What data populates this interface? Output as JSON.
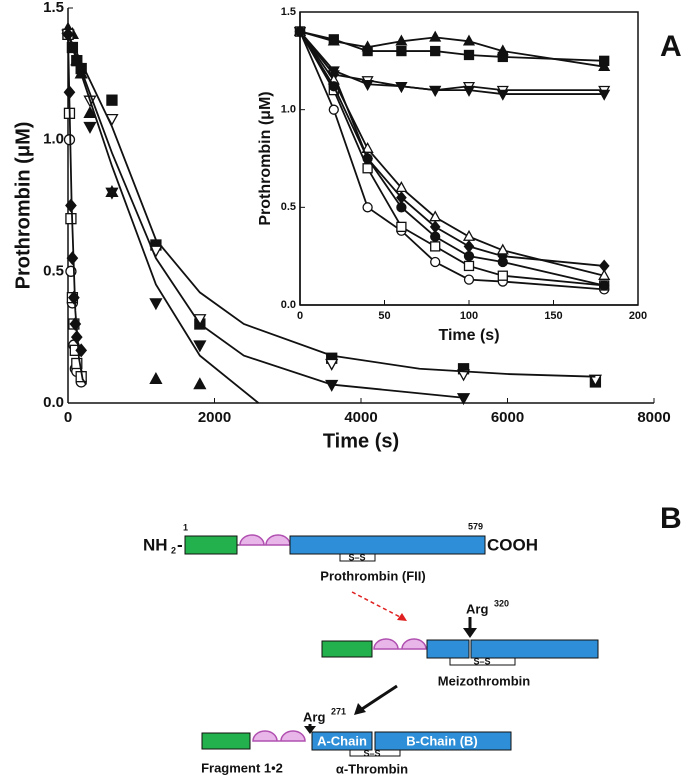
{
  "panel_a": "A",
  "panel_b": "B",
  "chart_data": [
    {
      "type": "scatter",
      "xlabel": "Time (s)",
      "ylabel": "Prothrombin (μM)",
      "xlim": [
        0,
        8000
      ],
      "xticks": [
        0,
        2000,
        4000,
        6000,
        8000
      ],
      "ylim": [
        0,
        1.5
      ],
      "yticks": [
        {
          "value": 0,
          "label": "0.0"
        },
        0.5,
        {
          "value": 1,
          "label": "1.0"
        },
        1.5
      ],
      "series": [
        {
          "marker": "square",
          "filled": true,
          "color": "#111",
          "x": [
            0,
            60,
            120,
            180,
            600,
            1200,
            1800,
            3600,
            5400,
            7200
          ],
          "values": [
            1.4,
            1.35,
            1.3,
            1.27,
            1.15,
            0.6,
            0.3,
            0.17,
            0.13,
            0.08
          ]
        },
        {
          "marker": "triangle-down",
          "filled": false,
          "color": "#111",
          "x": [
            0,
            300,
            600,
            1200,
            1800,
            3600,
            5400,
            7200
          ],
          "values": [
            1.4,
            1.15,
            1.08,
            0.58,
            0.32,
            0.15,
            0.11,
            0.09
          ]
        },
        {
          "marker": "triangle-down",
          "filled": true,
          "color": "#111",
          "x": [
            0,
            300,
            600,
            1200,
            1800,
            3600,
            5400
          ],
          "values": [
            1.4,
            1.05,
            0.8,
            0.38,
            0.22,
            0.07,
            0.02
          ]
        },
        {
          "marker": "triangle",
          "filled": true,
          "color": "#111",
          "x": [
            0,
            60,
            120,
            180,
            300,
            600,
            1200,
            1800
          ],
          "values": [
            1.42,
            1.4,
            1.3,
            1.25,
            1.1,
            0.8,
            0.09,
            0.07
          ]
        },
        {
          "marker": "circle",
          "filled": false,
          "color": "#111",
          "x": [
            0,
            20,
            40,
            60,
            80,
            100,
            120,
            180
          ],
          "values": [
            1.4,
            1.0,
            0.5,
            0.38,
            0.22,
            0.13,
            0.12,
            0.08
          ]
        },
        {
          "marker": "square",
          "filled": false,
          "color": "#111",
          "x": [
            0,
            20,
            40,
            60,
            80,
            100,
            120,
            180
          ],
          "values": [
            1.4,
            1.1,
            0.7,
            0.4,
            0.3,
            0.2,
            0.15,
            0.1
          ]
        },
        {
          "marker": "diamond",
          "filled": true,
          "color": "#111",
          "x": [
            0,
            20,
            40,
            60,
            80,
            100,
            120,
            180
          ],
          "values": [
            1.4,
            1.18,
            0.75,
            0.55,
            0.4,
            0.3,
            0.25,
            0.2
          ]
        },
        {
          "line": true,
          "color": "#111",
          "x": [
            0,
            600,
            1200,
            1800,
            2400,
            3600,
            4800,
            6000,
            7200
          ],
          "values": [
            1.4,
            1.05,
            0.62,
            0.42,
            0.3,
            0.18,
            0.13,
            0.11,
            0.1
          ]
        },
        {
          "line": true,
          "color": "#111",
          "x": [
            0,
            600,
            1200,
            1800,
            2400,
            3600,
            5400
          ],
          "values": [
            1.4,
            0.95,
            0.55,
            0.3,
            0.18,
            0.07,
            0.02
          ]
        },
        {
          "line": true,
          "color": "#111",
          "x": [
            0,
            600,
            1200,
            1800,
            2600
          ],
          "values": [
            1.4,
            0.9,
            0.45,
            0.18,
            0
          ]
        },
        {
          "line": true,
          "color": "#111",
          "x": [
            0,
            50,
            100,
            150,
            200,
            250
          ],
          "values": [
            1.4,
            0.75,
            0.35,
            0.17,
            0.09,
            0.07
          ]
        }
      ]
    },
    {
      "type": "scatter",
      "xlabel": "Time (s)",
      "ylabel": "Prothrombin (μM)",
      "xlim": [
        0,
        200
      ],
      "xticks": [
        0,
        50,
        100,
        150,
        200
      ],
      "ylim": [
        0,
        1.5
      ],
      "yticks": [
        {
          "value": 0,
          "label": "0.0"
        },
        0.5,
        {
          "value": 1,
          "label": "1.0"
        },
        1.5
      ],
      "series": [
        {
          "marker": "square",
          "filled": true,
          "line": true,
          "color": "#111",
          "x": [
            0,
            20,
            40,
            60,
            80,
            100,
            120,
            180
          ],
          "values": [
            1.4,
            1.36,
            1.3,
            1.3,
            1.3,
            1.28,
            1.27,
            1.25
          ]
        },
        {
          "marker": "triangle",
          "filled": true,
          "line": true,
          "color": "#111",
          "x": [
            0,
            20,
            40,
            60,
            80,
            100,
            120,
            180
          ],
          "values": [
            1.4,
            1.35,
            1.32,
            1.35,
            1.37,
            1.35,
            1.3,
            1.22
          ]
        },
        {
          "marker": "triangle-down",
          "filled": false,
          "line": true,
          "color": "#111",
          "x": [
            0,
            20,
            40,
            60,
            80,
            100,
            120,
            180
          ],
          "values": [
            1.4,
            1.18,
            1.15,
            1.12,
            1.1,
            1.12,
            1.1,
            1.1
          ]
        },
        {
          "marker": "triangle-down",
          "filled": true,
          "line": true,
          "color": "#111",
          "x": [
            0,
            20,
            40,
            60,
            80,
            100,
            120,
            180
          ],
          "values": [
            1.4,
            1.2,
            1.13,
            1.12,
            1.1,
            1.1,
            1.08,
            1.08
          ]
        },
        {
          "marker": "diamond",
          "filled": true,
          "line": true,
          "color": "#111",
          "x": [
            0,
            20,
            40,
            60,
            80,
            100,
            120,
            180
          ],
          "values": [
            1.4,
            1.18,
            0.75,
            0.55,
            0.4,
            0.3,
            0.25,
            0.2
          ]
        },
        {
          "marker": "triangle",
          "filled": false,
          "line": true,
          "color": "#111",
          "x": [
            0,
            20,
            40,
            60,
            80,
            100,
            120,
            180
          ],
          "values": [
            1.4,
            1.15,
            0.8,
            0.6,
            0.45,
            0.35,
            0.28,
            0.15
          ]
        },
        {
          "marker": "circle",
          "filled": false,
          "line": true,
          "color": "#111",
          "x": [
            0,
            20,
            40,
            60,
            80,
            100,
            120,
            180
          ],
          "values": [
            1.4,
            1.0,
            0.5,
            0.38,
            0.22,
            0.13,
            0.12,
            0.08
          ]
        },
        {
          "marker": "square",
          "filled": false,
          "line": true,
          "color": "#111",
          "x": [
            0,
            20,
            40,
            60,
            80,
            100,
            120,
            180
          ],
          "values": [
            1.4,
            1.1,
            0.7,
            0.4,
            0.3,
            0.2,
            0.15,
            0.1
          ]
        },
        {
          "marker": "circle",
          "filled": true,
          "line": true,
          "color": "#111",
          "x": [
            0,
            20,
            40,
            60,
            80,
            100,
            120,
            180
          ],
          "values": [
            1.4,
            1.12,
            0.75,
            0.5,
            0.35,
            0.25,
            0.22,
            0.1
          ]
        }
      ]
    }
  ],
  "diagram": {
    "nh": "NH",
    "nh_sub": "2",
    "dash": "-",
    "start_residue": "1",
    "end_residue": "579",
    "cooh": "COOH",
    "ss": [
      "S–S",
      "S–S",
      "S–S"
    ],
    "prothrombin": "Prothrombin  (FII)",
    "arg": [
      "Arg",
      "Arg"
    ],
    "arg_site": [
      "320",
      "271"
    ],
    "meizothrombin": "Meizothrombin",
    "a_chain": "A-Chain",
    "b_chain": "B-Chain  (B)",
    "fragment": "Fragment 1•2",
    "thrombin": "α-Thrombin"
  }
}
